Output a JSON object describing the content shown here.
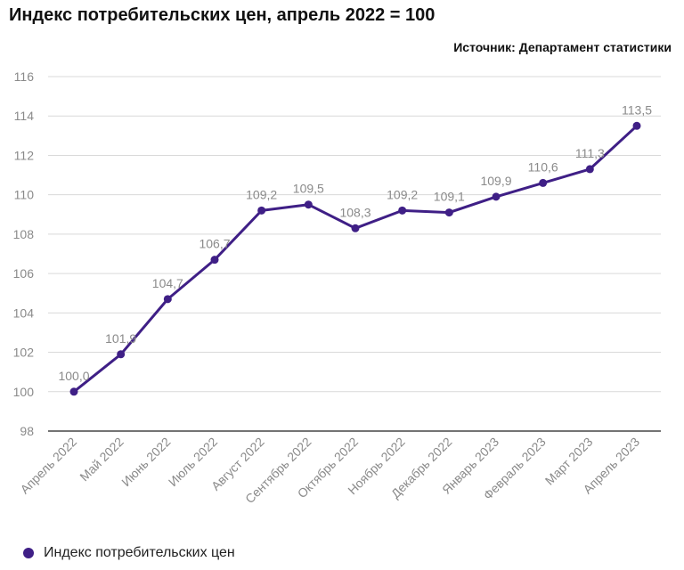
{
  "chart_data": {
    "type": "line",
    "title": "Индекс потребительских цен, апрель 2022 = 100",
    "subtitle": "Источник: Департамент статистики",
    "xlabel": "",
    "ylabel": "",
    "ylim": [
      98,
      116
    ],
    "yticks": [
      "98",
      "100",
      "102",
      "104",
      "106",
      "108",
      "110",
      "112",
      "114",
      "116"
    ],
    "grid": true,
    "legend_position": "bottom-left",
    "categories": [
      "Апрель 2022",
      "Май 2022",
      "Июнь 2022",
      "Июль 2022",
      "Август 2022",
      "Сентябрь 2022",
      "Октябрь 2022",
      "Ноябрь 2022",
      "Декабрь 2022",
      "Январь 2023",
      "Февраль 2023",
      "Март 2023",
      "Апрель 2023"
    ],
    "series": [
      {
        "name": "Индекс потребительских цен",
        "color": "#3f1f86",
        "values": [
          100.0,
          101.9,
          104.7,
          106.7,
          109.2,
          109.5,
          108.3,
          109.2,
          109.1,
          109.9,
          110.6,
          111.3,
          113.5
        ],
        "labels": [
          "100,0",
          "101,9",
          "104,7",
          "106,7",
          "109,2",
          "109,5",
          "108,3",
          "109,2",
          "109,1",
          "109,9",
          "110,6",
          "111,3",
          "113,5"
        ]
      }
    ]
  }
}
